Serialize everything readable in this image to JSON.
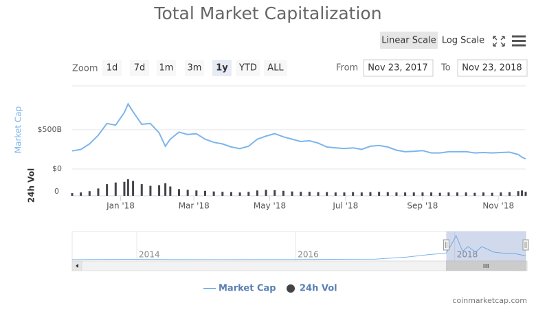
{
  "ui": {
    "title": "Total Market Capitalization",
    "scale_buttons": [
      "Linear Scale",
      "Log Scale"
    ],
    "scale_selected": 0,
    "zoom_label": "Zoom",
    "zoom_buttons": [
      "1d",
      "7d",
      "1m",
      "3m",
      "1y",
      "YTD",
      "ALL"
    ],
    "zoom_selected": 4,
    "from_label": "From",
    "from_value": "Nov 23, 2017",
    "to_label": "To",
    "to_value": "Nov 23, 2018",
    "credits": "coinmarketcap.com"
  },
  "chart_data": [
    {
      "type": "line",
      "y_label": "Market Cap",
      "x": [
        "2017-11-23",
        "2017-11-30",
        "2017-12-07",
        "2017-12-14",
        "2017-12-21",
        "2017-12-28",
        "2018-01-04",
        "2018-01-07",
        "2018-01-11",
        "2018-01-18",
        "2018-01-25",
        "2018-02-01",
        "2018-02-06",
        "2018-02-10",
        "2018-02-17",
        "2018-02-24",
        "2018-03-03",
        "2018-03-10",
        "2018-03-17",
        "2018-03-24",
        "2018-03-31",
        "2018-04-07",
        "2018-04-14",
        "2018-04-21",
        "2018-04-28",
        "2018-05-05",
        "2018-05-12",
        "2018-05-19",
        "2018-05-26",
        "2018-06-02",
        "2018-06-09",
        "2018-06-16",
        "2018-06-23",
        "2018-06-30",
        "2018-07-07",
        "2018-07-14",
        "2018-07-21",
        "2018-07-28",
        "2018-08-04",
        "2018-08-11",
        "2018-08-18",
        "2018-08-25",
        "2018-09-01",
        "2018-09-08",
        "2018-09-15",
        "2018-09-22",
        "2018-09-29",
        "2018-10-06",
        "2018-10-13",
        "2018-10-20",
        "2018-10-27",
        "2018-11-03",
        "2018-11-10",
        "2018-11-17",
        "2018-11-20",
        "2018-11-23"
      ],
      "series": [
        {
          "name": "Market Cap",
          "color": "#7cb5ec",
          "values": [
            230,
            250,
            320,
            430,
            580,
            560,
            720,
            830,
            730,
            570,
            580,
            460,
            290,
            380,
            470,
            440,
            450,
            380,
            340,
            320,
            280,
            260,
            290,
            380,
            420,
            450,
            410,
            380,
            350,
            360,
            330,
            280,
            270,
            260,
            270,
            250,
            290,
            300,
            280,
            240,
            220,
            225,
            235,
            205,
            205,
            220,
            220,
            222,
            205,
            210,
            205,
            210,
            215,
            185,
            150,
            130
          ]
        }
      ],
      "xlim": [
        "2017-11-23",
        "2018-11-23"
      ],
      "xticks": [
        {
          "value": "2018-01-01",
          "label": "Jan '18"
        },
        {
          "value": "2018-03-01",
          "label": "Mar '18"
        },
        {
          "value": "2018-05-01",
          "label": "May '18"
        },
        {
          "value": "2018-07-01",
          "label": "Jul '18"
        },
        {
          "value": "2018-09-01",
          "label": "Sep '18"
        },
        {
          "value": "2018-11-01",
          "label": "Nov '18"
        }
      ],
      "ylim": [
        0,
        1060
      ],
      "yticks": [
        {
          "value": 0,
          "label": "$0"
        },
        {
          "value": 500,
          "label": "$500B"
        }
      ],
      "grid": true
    },
    {
      "type": "bar",
      "y_label": "24h Vol",
      "x": [
        "2017-11-23",
        "2017-11-30",
        "2017-12-07",
        "2017-12-14",
        "2017-12-21",
        "2017-12-28",
        "2018-01-04",
        "2018-01-07",
        "2018-01-11",
        "2018-01-18",
        "2018-01-25",
        "2018-02-01",
        "2018-02-06",
        "2018-02-10",
        "2018-02-17",
        "2018-02-24",
        "2018-03-03",
        "2018-03-10",
        "2018-03-17",
        "2018-03-24",
        "2018-03-31",
        "2018-04-07",
        "2018-04-14",
        "2018-04-21",
        "2018-04-28",
        "2018-05-05",
        "2018-05-12",
        "2018-05-19",
        "2018-05-26",
        "2018-06-02",
        "2018-06-09",
        "2018-06-16",
        "2018-06-23",
        "2018-06-30",
        "2018-07-07",
        "2018-07-14",
        "2018-07-21",
        "2018-07-28",
        "2018-08-04",
        "2018-08-11",
        "2018-08-18",
        "2018-08-25",
        "2018-09-01",
        "2018-09-08",
        "2018-09-15",
        "2018-09-22",
        "2018-09-29",
        "2018-10-06",
        "2018-10-13",
        "2018-10-20",
        "2018-10-27",
        "2018-11-03",
        "2018-11-10",
        "2018-11-17",
        "2018-11-20",
        "2018-11-23"
      ],
      "series": [
        {
          "name": "24h Vol",
          "color": "#434348",
          "values": [
            8,
            10,
            14,
            22,
            35,
            40,
            42,
            50,
            45,
            35,
            30,
            32,
            38,
            28,
            20,
            18,
            16,
            15,
            13,
            12,
            11,
            10,
            12,
            16,
            18,
            17,
            15,
            13,
            12,
            12,
            11,
            11,
            10,
            10,
            11,
            10,
            11,
            12,
            11,
            10,
            10,
            10,
            10,
            10,
            9,
            10,
            10,
            10,
            9,
            10,
            9,
            10,
            11,
            14,
            16,
            12
          ]
        }
      ],
      "ylim": [
        0,
        60
      ],
      "yticks": [
        0
      ]
    },
    {
      "type": "navigator",
      "x": [
        "2013-03-10",
        "2013-11-30",
        "2014-02-01",
        "2014-06-01",
        "2015-01-15",
        "2015-07-01",
        "2016-01-01",
        "2016-06-15",
        "2017-01-01",
        "2017-05-25",
        "2017-09-01",
        "2017-11-23",
        "2017-12-21",
        "2018-01-07",
        "2018-02-06",
        "2018-03-03",
        "2018-04-07",
        "2018-05-05",
        "2018-06-30",
        "2018-08-18",
        "2018-09-29",
        "2018-11-23"
      ],
      "series": [
        {
          "color": "#7cb5ec",
          "values": [
            1.5,
            13,
            10,
            8,
            3,
            4,
            7,
            12,
            18,
            90,
            170,
            230,
            580,
            830,
            290,
            450,
            260,
            450,
            260,
            220,
            220,
            130
          ]
        }
      ],
      "xlim": [
        "2013-03-10",
        "2018-11-23"
      ],
      "xticks": [
        {
          "value": "2014-01-01",
          "label": "2014"
        },
        {
          "value": "2016-01-01",
          "label": "2016"
        },
        {
          "value": "2018-01-01",
          "label": "2018"
        }
      ],
      "ylim": [
        0,
        900
      ]
    }
  ]
}
